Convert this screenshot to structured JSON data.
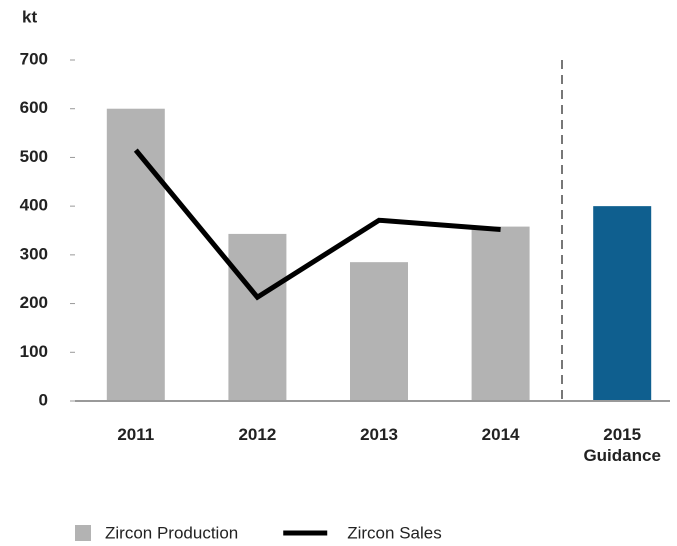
{
  "chart_data": {
    "type": "bar_line",
    "y_label": "kt",
    "categories": [
      "2011",
      "2012",
      "2013",
      "2014",
      "2015 Guidance"
    ],
    "series": [
      {
        "name": "Zircon Production",
        "type": "bar",
        "color": "#b3b3b3",
        "colors": [
          "#b3b3b3",
          "#b3b3b3",
          "#b3b3b3",
          "#b3b3b3",
          "#0f5f8f"
        ],
        "values": [
          600,
          343,
          285,
          358,
          400
        ]
      },
      {
        "name": "Zircon Sales",
        "type": "line",
        "color": "#000000",
        "values": [
          515,
          213,
          371,
          352,
          null
        ]
      }
    ],
    "ylim": [
      0,
      700
    ],
    "yticks": [
      0,
      100,
      200,
      300,
      400,
      500,
      600,
      700
    ],
    "grid": false,
    "legend": "bottom"
  }
}
